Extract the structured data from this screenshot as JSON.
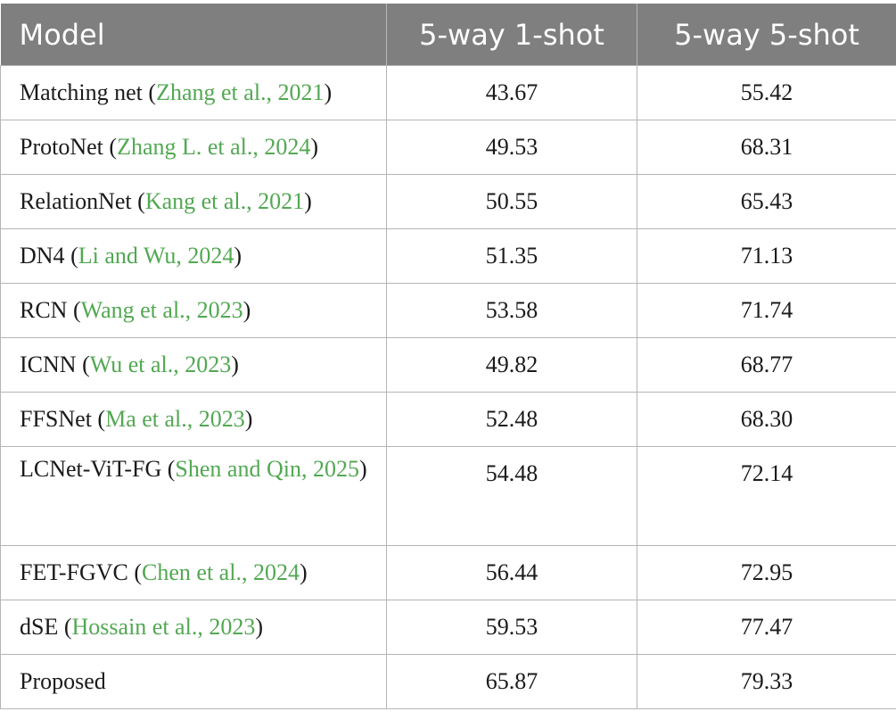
{
  "table": {
    "headers": [
      "Model",
      "5-way 1-shot",
      "5-way 5-shot"
    ],
    "rows": [
      {
        "model": "Matching net",
        "citation": "Zhang et al., 2021",
        "one_shot": "43.67",
        "five_shot": "55.42"
      },
      {
        "model": "ProtoNet",
        "citation": "Zhang L. et al., 2024",
        "one_shot": "49.53",
        "five_shot": "68.31"
      },
      {
        "model": "RelationNet",
        "citation": "Kang et al., 2021",
        "one_shot": "50.55",
        "five_shot": "65.43"
      },
      {
        "model": "DN4",
        "citation": "Li and Wu, 2024",
        "one_shot": "51.35",
        "five_shot": "71.13"
      },
      {
        "model": "RCN",
        "citation": "Wang et al., 2023",
        "one_shot": "53.58",
        "five_shot": "71.74"
      },
      {
        "model": "ICNN",
        "citation": "Wu et al., 2023",
        "one_shot": "49.82",
        "five_shot": "68.77"
      },
      {
        "model": "FFSNet",
        "citation": "Ma et al., 2023",
        "one_shot": "52.48",
        "five_shot": "68.30"
      },
      {
        "model": "LCNet-ViT-FG",
        "citation": "Shen and Qin, 2025",
        "one_shot": "54.48",
        "five_shot": "72.14"
      },
      {
        "model": "FET-FGVC",
        "citation": "Chen et al., 2024",
        "one_shot": "56.44",
        "five_shot": "72.95"
      },
      {
        "model": "dSE",
        "citation": "Hossain et al., 2023",
        "one_shot": "59.53",
        "five_shot": "77.47"
      },
      {
        "model": "Proposed",
        "citation": "",
        "one_shot": "65.87",
        "five_shot": "79.33"
      }
    ]
  },
  "colors": {
    "header_bg": "#7f7f7f",
    "citation": "#52a852",
    "grid": "#b5b5b5"
  }
}
